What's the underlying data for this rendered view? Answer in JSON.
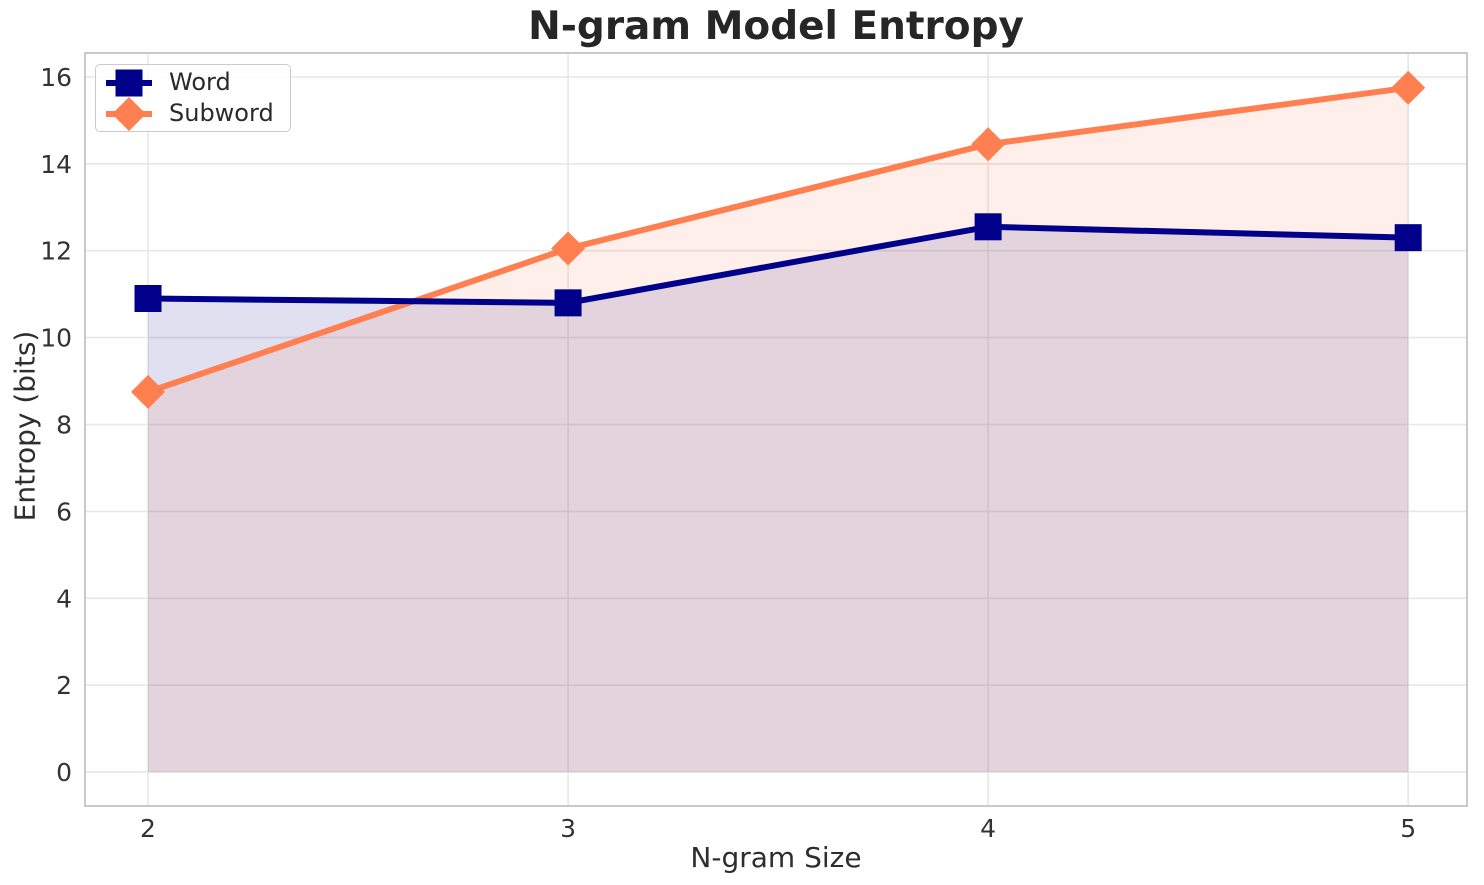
{
  "chart_data": {
    "type": "line",
    "title": "N-gram Model Entropy",
    "xlabel": "N-gram Size",
    "ylabel": "Entropy (bits)",
    "x": [
      2,
      3,
      4,
      5
    ],
    "series": [
      {
        "name": "Word",
        "color": "#00008B",
        "marker": "square",
        "values": [
          10.9,
          10.8,
          12.55,
          12.3
        ]
      },
      {
        "name": "Subword",
        "color": "#FF7F50",
        "marker": "diamond",
        "values": [
          8.75,
          12.05,
          14.45,
          15.75
        ]
      }
    ],
    "fill_to_zero": true,
    "fill_opacity": 0.12,
    "xticks": [
      2,
      3,
      4,
      5
    ],
    "yticks": [
      0,
      2,
      4,
      6,
      8,
      10,
      12,
      14,
      16
    ],
    "xlim": [
      1.85,
      5.14
    ],
    "ylim": [
      -0.78,
      16.55
    ],
    "grid": true,
    "legend": {
      "position": "upper left",
      "entries": [
        "Word",
        "Subword"
      ]
    },
    "style": {
      "grid_color": "#e7e7e7",
      "spine_color": "#c9c9c9",
      "line_width": 6,
      "square_size": 27,
      "diamond_radius": 17,
      "background": "#ffffff"
    }
  }
}
